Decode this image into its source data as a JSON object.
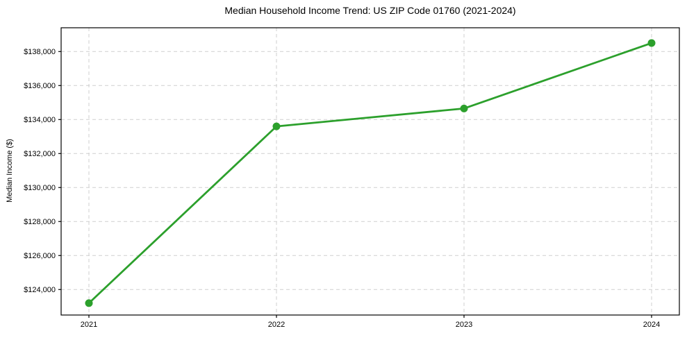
{
  "chart_data": {
    "type": "line",
    "title": "Median Household Income Trend: US ZIP Code 01760 (2021-2024)",
    "xlabel": "",
    "ylabel": "Median Income ($)",
    "x": [
      2021,
      2022,
      2023,
      2024
    ],
    "values": [
      123200,
      133600,
      134650,
      138500
    ],
    "ylim": [
      122500,
      139400
    ],
    "yticks": [
      {
        "value": 124000,
        "label": "$124,000"
      },
      {
        "value": 126000,
        "label": "$126,000"
      },
      {
        "value": 128000,
        "label": "$128,000"
      },
      {
        "value": 130000,
        "label": "$130,000"
      },
      {
        "value": 132000,
        "label": "$132,000"
      },
      {
        "value": 134000,
        "label": "$134,000"
      },
      {
        "value": 136000,
        "label": "$136,000"
      },
      {
        "value": 138000,
        "label": "$138,000"
      }
    ],
    "xticks": [
      {
        "value": 2021,
        "label": "2021"
      },
      {
        "value": 2022,
        "label": "2022"
      },
      {
        "value": 2023,
        "label": "2023"
      },
      {
        "value": 2024,
        "label": "2024"
      }
    ],
    "grid": true,
    "grid_style": "dashed",
    "legend": "none",
    "marker": "circle",
    "colors": {
      "line": "#2ca02c",
      "grid": "#cfcfcf",
      "axis": "#000000",
      "text": "#000000",
      "background": "#ffffff"
    }
  }
}
